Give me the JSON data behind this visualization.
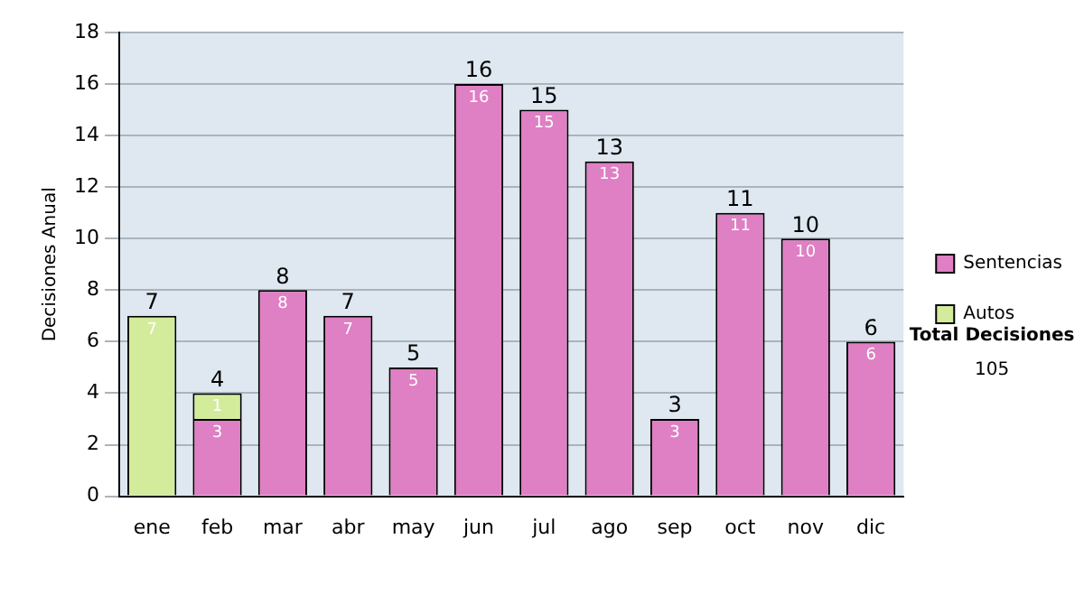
{
  "chart_data": {
    "type": "bar",
    "stacked": true,
    "ylabel": "Decisiones Anual",
    "categories": [
      "ene",
      "feb",
      "mar",
      "abr",
      "may",
      "jun",
      "jul",
      "ago",
      "sep",
      "oct",
      "nov",
      "dic"
    ],
    "series": [
      {
        "name": "Sentencias",
        "color": "#df7fc4",
        "values": [
          null,
          3,
          8,
          7,
          5,
          16,
          15,
          13,
          3,
          11,
          10,
          6
        ]
      },
      {
        "name": "Autos",
        "color": "#d3ec9c",
        "values": [
          7,
          1,
          null,
          null,
          null,
          null,
          null,
          null,
          null,
          null,
          null,
          null
        ]
      }
    ],
    "ylim": [
      0,
      18
    ],
    "yticks": [
      0,
      2,
      4,
      6,
      8,
      10,
      12,
      14,
      16,
      18
    ],
    "grid": "y",
    "legend": "right",
    "data_labels": true,
    "totals": [
      "7",
      "4",
      "8",
      "7",
      "5",
      "16",
      "15",
      "13",
      "3",
      "11",
      "10",
      "6"
    ],
    "annotations": [
      "Total Decisiones",
      "105"
    ]
  }
}
